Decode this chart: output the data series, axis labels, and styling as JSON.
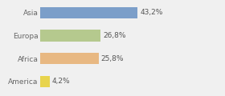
{
  "categories": [
    "America",
    "Africa",
    "Europa",
    "Asia"
  ],
  "values": [
    4.2,
    25.8,
    26.8,
    43.2
  ],
  "labels": [
    "4,2%",
    "25,8%",
    "26,8%",
    "43,2%"
  ],
  "bar_colors": [
    "#e8d44d",
    "#e8b882",
    "#b5c98e",
    "#7b9ec9"
  ],
  "background_color": "#f0f0f0",
  "xlim": [
    0,
    70
  ],
  "bar_height": 0.5,
  "label_fontsize": 6.5,
  "tick_fontsize": 6.5
}
